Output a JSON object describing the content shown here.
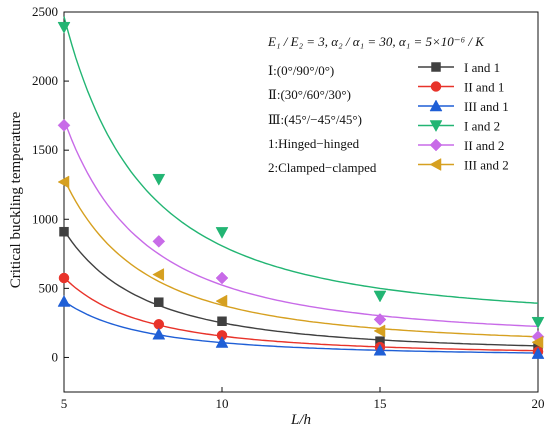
{
  "chart_data": {
    "type": "line",
    "xlabel": "L/h",
    "ylabel": "Critical buckling temperature",
    "xlim": [
      5,
      20
    ],
    "ylim": [
      -250,
      2500
    ],
    "xticks": [
      5,
      10,
      15,
      20
    ],
    "yticks": [
      0,
      500,
      1000,
      1500,
      2000,
      2500
    ],
    "grid": false,
    "legend_position": "top-right",
    "annotations": [
      "E₁ / E₂ = 3,  α₂ / α₁ = 30,  α₁ = 5×10⁻⁶ / K",
      "Ⅰ:(0°/90°/0°)",
      "Ⅱ:(30°/60°/30°)",
      "Ⅲ:(45°/−45°/45°)",
      "1:Hinged−hinged",
      "2:Clamped−clamped"
    ],
    "series": [
      {
        "name": "I and 1",
        "color": "#404040",
        "marker": "square",
        "x": [
          5,
          8,
          10,
          15,
          20
        ],
        "y": [
          910,
          400,
          262,
          118,
          68
        ]
      },
      {
        "name": "II and 1",
        "color": "#e8332a",
        "marker": "circle",
        "x": [
          5,
          8,
          10,
          15,
          20
        ],
        "y": [
          575,
          240,
          160,
          75,
          42
        ]
      },
      {
        "name": "III and 1",
        "color": "#1f5fd6",
        "marker": "triangle-up",
        "x": [
          5,
          8,
          10,
          15,
          20
        ],
        "y": [
          405,
          168,
          108,
          52,
          28
        ]
      },
      {
        "name": "I and 2",
        "color": "#22b573",
        "marker": "triangle-down",
        "x": [
          5,
          8,
          10,
          15,
          20
        ],
        "y": [
          2390,
          1290,
          905,
          445,
          255
        ]
      },
      {
        "name": "II and 2",
        "color": "#c86be8",
        "marker": "diamond",
        "x": [
          5,
          8,
          10,
          15,
          20
        ],
        "y": [
          1680,
          840,
          575,
          275,
          150
        ]
      },
      {
        "name": "III and 2",
        "color": "#d6a020",
        "marker": "triangle-left",
        "x": [
          5,
          8,
          10,
          15,
          20
        ],
        "y": [
          1270,
          600,
          408,
          192,
          110
        ]
      }
    ]
  }
}
